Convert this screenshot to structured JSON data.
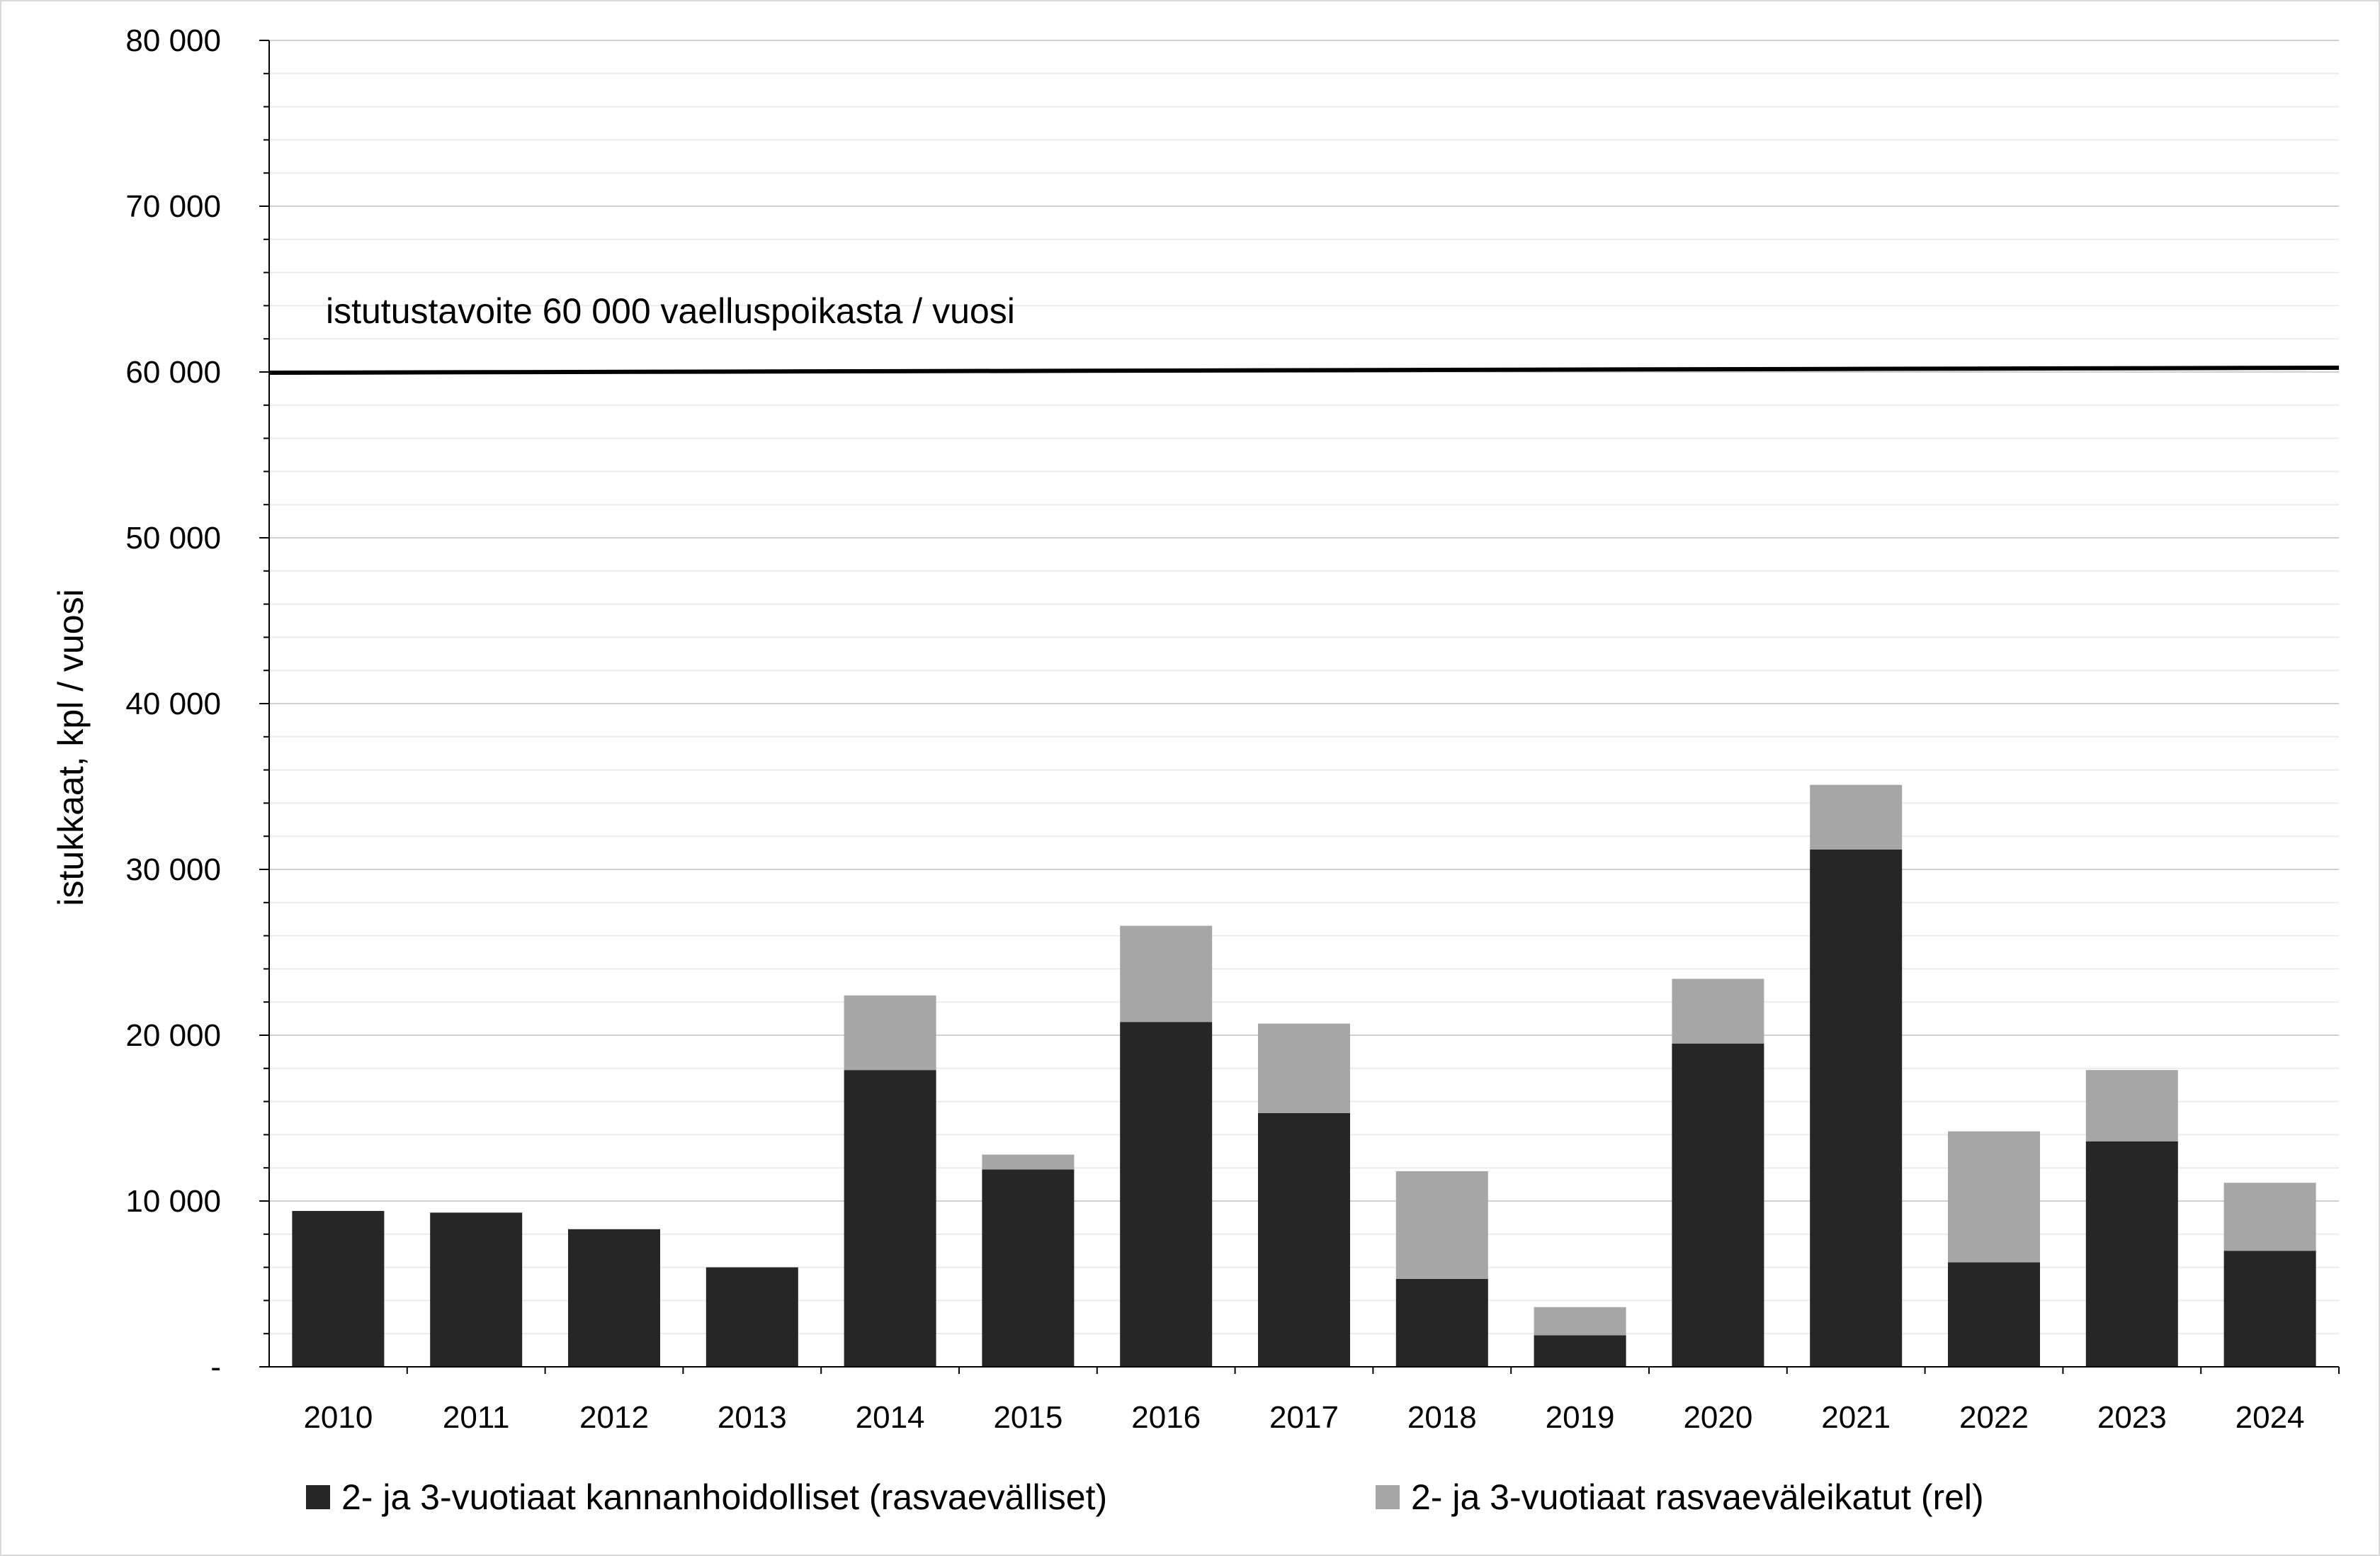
{
  "chart_data": {
    "type": "bar",
    "stacked": true,
    "title": "",
    "xlabel": "",
    "ylabel": "istukkaat, kpl / vuosi",
    "ylim": [
      0,
      80000
    ],
    "yticks": [
      0,
      10000,
      20000,
      30000,
      40000,
      50000,
      60000,
      70000,
      80000
    ],
    "ytick_labels": [
      "-",
      "10 000",
      "20 000",
      "30 000",
      "40 000",
      "50 000",
      "60 000",
      "70 000",
      "80 000"
    ],
    "grid": true,
    "legend_position": "bottom",
    "categories": [
      "2010",
      "2011",
      "2012",
      "2013",
      "2014",
      "2015",
      "2016",
      "2017",
      "2018",
      "2019",
      "2020",
      "2021",
      "2022",
      "2023",
      "2024"
    ],
    "series": [
      {
        "name": "2- ja 3-vuotiaat kannanhoidolliset (rasvaevälliset)",
        "color": "#262626",
        "values": [
          9400,
          9300,
          8300,
          6000,
          17900,
          11900,
          20800,
          15300,
          5300,
          1900,
          19500,
          31200,
          6300,
          13600,
          7000
        ]
      },
      {
        "name": "2- ja 3-vuotiaat rasvaeväleikatut (rel)",
        "color": "#a6a6a6",
        "values": [
          0,
          0,
          0,
          0,
          4500,
          900,
          5800,
          5400,
          6500,
          1700,
          3900,
          3900,
          7900,
          4300,
          4100
        ]
      }
    ],
    "reference_line": {
      "value": 60000,
      "label": "istutustavoite 60 000 vaelluspoikasta / vuosi",
      "color": "#000000"
    }
  }
}
